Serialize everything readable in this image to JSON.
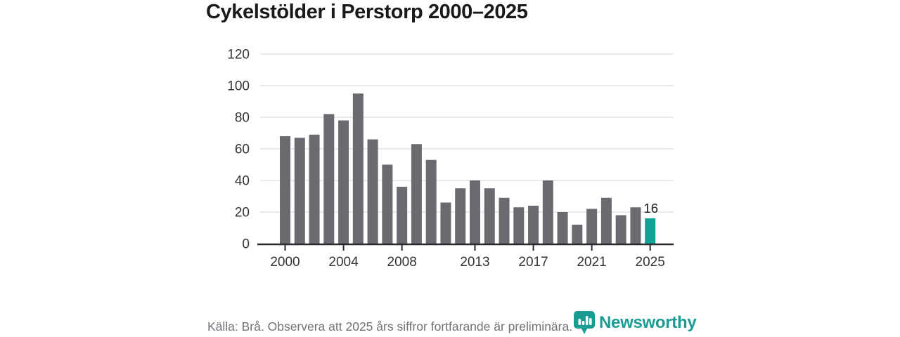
{
  "title": "Cykelstölder i Perstorp 2000–2025",
  "footer": {
    "source": "Källa: Brå. Observera att 2025 års siffror fortfarande är preliminära.",
    "brand": "Newsworthy"
  },
  "colors": {
    "bar": "#6b6a70",
    "highlight": "#11a296",
    "grid": "#e4e4e6",
    "axis": "#2a2a2e",
    "tick_label": "#333333",
    "data_label": "#222222",
    "source_text": "#6f7277",
    "brand": "#1b9c93"
  },
  "chart_data": {
    "type": "bar",
    "title": "Cykelstölder i Perstorp 2000–2025",
    "categories": [
      2000,
      2001,
      2002,
      2003,
      2004,
      2005,
      2006,
      2007,
      2008,
      2009,
      2010,
      2011,
      2012,
      2013,
      2014,
      2015,
      2016,
      2017,
      2018,
      2019,
      2020,
      2021,
      2022,
      2023,
      2024,
      2025
    ],
    "values": [
      68,
      67,
      69,
      82,
      78,
      95,
      66,
      50,
      36,
      63,
      53,
      26,
      35,
      40,
      35,
      29,
      23,
      24,
      40,
      20,
      12,
      22,
      29,
      18,
      23,
      16
    ],
    "highlighted_category": 2025,
    "highlighted_value_label": "16",
    "x_tick_labels": [
      "2000",
      "2004",
      "2008",
      "2013",
      "2017",
      "2021",
      "2025"
    ],
    "y_ticks": [
      0,
      20,
      40,
      60,
      80,
      100,
      120
    ],
    "ylim": [
      0,
      120
    ],
    "xlabel": "",
    "ylabel": "",
    "grid": true,
    "legend": false
  }
}
